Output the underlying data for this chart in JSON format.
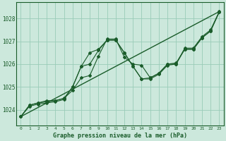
{
  "title": "Graphe pression niveau de la mer (hPa)",
  "bg_color": "#cce8dc",
  "grid_color": "#99ccb8",
  "line_color": "#1a5c2a",
  "xlim": [
    -0.5,
    23.5
  ],
  "ylim": [
    1023.3,
    1028.7
  ],
  "yticks": [
    1024,
    1025,
    1026,
    1027,
    1028
  ],
  "xticks": [
    0,
    1,
    2,
    3,
    4,
    5,
    6,
    7,
    8,
    9,
    10,
    11,
    12,
    13,
    14,
    15,
    16,
    17,
    18,
    19,
    20,
    21,
    22,
    23
  ],
  "trend_line": {
    "x": [
      0,
      23
    ],
    "y": [
      1023.7,
      1028.3
    ]
  },
  "series1": {
    "x": [
      0,
      1,
      2,
      3,
      4,
      5,
      6,
      7,
      8,
      9,
      10,
      11,
      12,
      13,
      14,
      15,
      16,
      17,
      18,
      19,
      20,
      21,
      22,
      23
    ],
    "y": [
      1023.7,
      1024.2,
      1024.3,
      1024.4,
      1024.4,
      1024.5,
      1024.85,
      1025.4,
      1025.5,
      1026.35,
      1027.1,
      1027.1,
      1026.3,
      1026.0,
      1025.95,
      1025.4,
      1025.6,
      1026.0,
      1026.0,
      1026.7,
      1026.7,
      1027.2,
      1027.5,
      1028.3
    ]
  },
  "series2": {
    "x": [
      0,
      1,
      2,
      3,
      4,
      5,
      6,
      7,
      8,
      9,
      10,
      11,
      12,
      13,
      14,
      15,
      16,
      17,
      18,
      19,
      20,
      21,
      22,
      23
    ],
    "y": [
      1023.7,
      1024.2,
      1024.3,
      1024.35,
      1024.4,
      1024.5,
      1025.0,
      1025.9,
      1026.5,
      1026.65,
      1027.05,
      1027.05,
      1026.5,
      1025.9,
      1025.35,
      1025.4,
      1025.6,
      1026.0,
      1026.05,
      1026.65,
      1026.65,
      1027.15,
      1027.45,
      1028.28
    ]
  },
  "series3": {
    "x": [
      0,
      1,
      2,
      3,
      4,
      5,
      6,
      7,
      8,
      9,
      10,
      11,
      12,
      13,
      14,
      15,
      16,
      17,
      18,
      19,
      20,
      21,
      22,
      23
    ],
    "y": [
      1023.7,
      1024.15,
      1024.25,
      1024.3,
      1024.35,
      1024.45,
      1025.0,
      1025.9,
      1026.0,
      1026.6,
      1027.05,
      1027.05,
      1026.5,
      1025.9,
      1025.35,
      1025.35,
      1025.55,
      1025.95,
      1026.0,
      1026.65,
      1026.65,
      1027.15,
      1027.45,
      1028.28
    ]
  }
}
